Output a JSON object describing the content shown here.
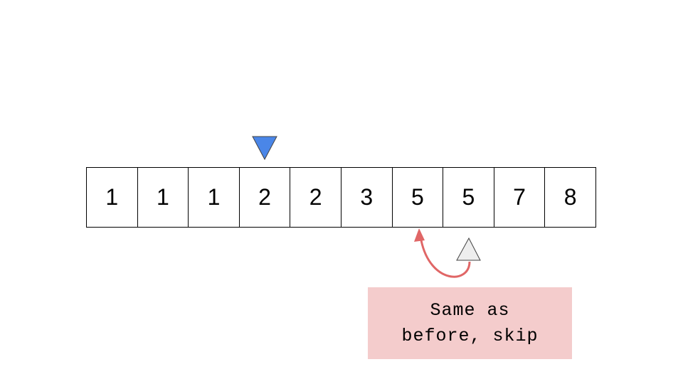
{
  "array": {
    "values": [
      "1",
      "1",
      "1",
      "2",
      "2",
      "3",
      "5",
      "5",
      "7",
      "8"
    ]
  },
  "pointers": {
    "primary": {
      "index": 3,
      "direction": "down",
      "color": "#4a86e8"
    },
    "secondary": {
      "index": 7,
      "direction": "up",
      "color": "#eeeeee"
    }
  },
  "arrow": {
    "from_index": 7,
    "to_index": 6,
    "color": "#e06666"
  },
  "callout": {
    "text": "Same as before, skip",
    "background": "#f4cccc"
  }
}
